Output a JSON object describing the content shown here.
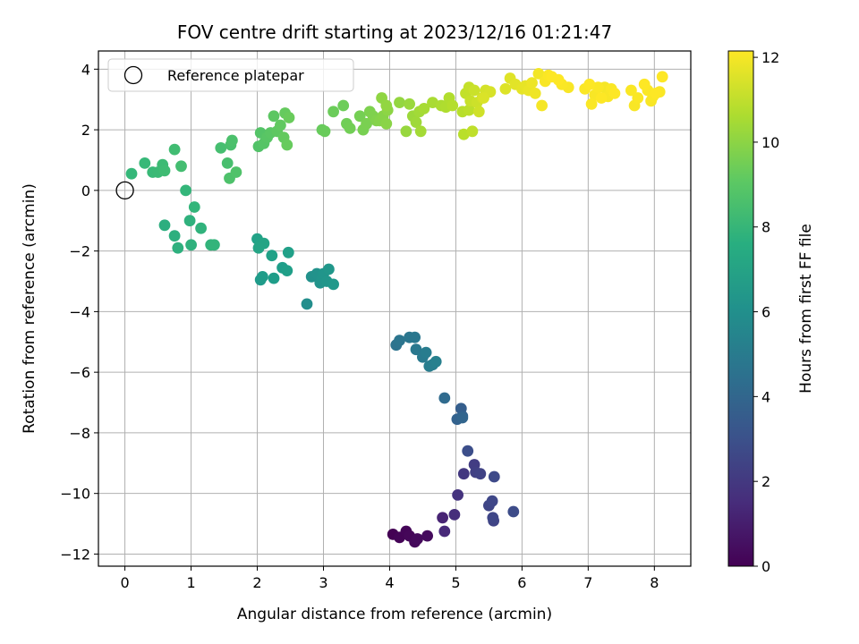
{
  "chart_data": {
    "type": "scatter",
    "title": "FOV centre drift starting at 2023/12/16 01:21:47",
    "xlabel": "Angular distance from reference (arcmin)",
    "ylabel": "Rotation from reference (arcmin)",
    "xlim": [
      -0.4,
      8.55
    ],
    "ylim": [
      -12.4,
      4.6
    ],
    "xticks": [
      0,
      1,
      2,
      3,
      4,
      5,
      6,
      7,
      8
    ],
    "yticks": [
      -12,
      -10,
      -8,
      -6,
      -4,
      -2,
      0,
      2,
      4
    ],
    "grid": true,
    "legend": {
      "position": "top-left",
      "entries": [
        "Reference platepar"
      ]
    },
    "reference_point": {
      "x": 0,
      "y": 0,
      "label": "Reference platepar"
    },
    "colorbar": {
      "label": "Hours from first FF file",
      "range": [
        0,
        12.15
      ],
      "ticks": [
        0,
        2,
        4,
        6,
        8,
        10,
        12
      ],
      "colormap": "viridis"
    },
    "points": [
      [
        4.05,
        -11.35,
        0.0
      ],
      [
        4.15,
        -11.45,
        0.1
      ],
      [
        4.25,
        -11.25,
        0.15
      ],
      [
        4.3,
        -11.4,
        0.2
      ],
      [
        4.38,
        -11.6,
        0.25
      ],
      [
        4.42,
        -11.5,
        0.3
      ],
      [
        4.57,
        -11.4,
        0.35
      ],
      [
        4.8,
        -10.8,
        1.2
      ],
      [
        4.83,
        -11.25,
        1.4
      ],
      [
        4.98,
        -10.7,
        1.6
      ],
      [
        5.03,
        -10.05,
        1.8
      ],
      [
        5.12,
        -9.35,
        2.0
      ],
      [
        5.28,
        -9.05,
        2.2
      ],
      [
        5.3,
        -9.3,
        2.3
      ],
      [
        5.37,
        -9.35,
        2.4
      ],
      [
        5.5,
        -10.4,
        2.5
      ],
      [
        5.55,
        -10.25,
        2.6
      ],
      [
        5.56,
        -10.8,
        2.55
      ],
      [
        5.57,
        -10.9,
        2.45
      ],
      [
        5.58,
        -9.45,
        2.7
      ],
      [
        5.87,
        -10.6,
        2.8
      ],
      [
        5.18,
        -8.6,
        2.9
      ],
      [
        5.08,
        -7.2,
        3.6
      ],
      [
        5.1,
        -7.45,
        3.7
      ],
      [
        5.02,
        -7.55,
        3.8
      ],
      [
        5.1,
        -7.5,
        3.9
      ],
      [
        4.83,
        -6.85,
        4.2
      ],
      [
        4.1,
        -5.1,
        4.6
      ],
      [
        4.15,
        -4.95,
        4.7
      ],
      [
        4.3,
        -4.85,
        4.8
      ],
      [
        4.38,
        -4.85,
        4.85
      ],
      [
        4.4,
        -5.25,
        4.9
      ],
      [
        4.5,
        -5.5,
        5.0
      ],
      [
        4.55,
        -5.35,
        5.1
      ],
      [
        4.6,
        -5.8,
        5.15
      ],
      [
        4.65,
        -5.75,
        5.2
      ],
      [
        4.7,
        -5.65,
        5.3
      ],
      [
        2.75,
        -3.75,
        6.0
      ],
      [
        2.82,
        -2.85,
        6.1
      ],
      [
        2.9,
        -2.75,
        6.15
      ],
      [
        2.95,
        -3.05,
        6.2
      ],
      [
        2.98,
        -2.9,
        6.25
      ],
      [
        3.0,
        -2.75,
        6.3
      ],
      [
        3.05,
        -3.0,
        6.35
      ],
      [
        3.08,
        -2.6,
        6.4
      ],
      [
        3.15,
        -3.1,
        6.45
      ],
      [
        2.05,
        -2.95,
        6.6
      ],
      [
        2.08,
        -2.85,
        6.65
      ],
      [
        2.25,
        -2.9,
        6.7
      ],
      [
        2.38,
        -2.55,
        6.75
      ],
      [
        2.45,
        -2.65,
        6.8
      ],
      [
        2.47,
        -2.05,
        6.85
      ],
      [
        2.22,
        -2.15,
        6.9
      ],
      [
        2.0,
        -1.6,
        6.95
      ],
      [
        2.05,
        -1.75,
        7.0
      ],
      [
        2.1,
        -1.75,
        7.05
      ],
      [
        2.02,
        -1.9,
        7.1
      ],
      [
        0.6,
        -1.15,
        7.6
      ],
      [
        0.75,
        -1.5,
        7.65
      ],
      [
        0.8,
        -1.9,
        7.7
      ],
      [
        1.0,
        -1.8,
        7.75
      ],
      [
        0.98,
        -1.0,
        7.8
      ],
      [
        1.15,
        -1.25,
        7.85
      ],
      [
        1.3,
        -1.8,
        7.9
      ],
      [
        1.35,
        -1.8,
        7.95
      ],
      [
        1.05,
        -0.55,
        8.0
      ],
      [
        0.92,
        0.0,
        8.05
      ],
      [
        0.1,
        0.55,
        8.1
      ],
      [
        0.3,
        0.9,
        8.15
      ],
      [
        0.42,
        0.6,
        8.2
      ],
      [
        0.5,
        0.6,
        8.25
      ],
      [
        0.57,
        0.85,
        8.3
      ],
      [
        0.6,
        0.65,
        8.35
      ],
      [
        0.75,
        1.35,
        8.4
      ],
      [
        0.85,
        0.8,
        8.45
      ],
      [
        1.45,
        1.4,
        8.5
      ],
      [
        1.55,
        0.9,
        8.55
      ],
      [
        1.6,
        1.5,
        8.6
      ],
      [
        1.62,
        1.65,
        8.65
      ],
      [
        1.58,
        0.4,
        8.7
      ],
      [
        1.68,
        0.6,
        8.75
      ],
      [
        2.02,
        1.45,
        8.8
      ],
      [
        2.05,
        1.9,
        8.85
      ],
      [
        2.1,
        1.55,
        8.9
      ],
      [
        2.15,
        1.75,
        8.95
      ],
      [
        2.2,
        1.9,
        9.0
      ],
      [
        2.25,
        2.45,
        9.05
      ],
      [
        2.3,
        1.95,
        9.1
      ],
      [
        2.35,
        2.15,
        9.15
      ],
      [
        2.4,
        1.75,
        9.2
      ],
      [
        2.42,
        2.55,
        9.25
      ],
      [
        2.45,
        1.5,
        9.3
      ],
      [
        2.48,
        2.4,
        9.35
      ],
      [
        2.98,
        2.0,
        9.3
      ],
      [
        3.02,
        1.95,
        9.35
      ],
      [
        3.15,
        2.6,
        9.4
      ],
      [
        3.3,
        2.8,
        9.45
      ],
      [
        3.35,
        2.2,
        9.5
      ],
      [
        3.4,
        2.05,
        9.55
      ],
      [
        3.55,
        2.45,
        9.6
      ],
      [
        3.6,
        2.0,
        9.65
      ],
      [
        3.65,
        2.2,
        9.7
      ],
      [
        3.7,
        2.6,
        9.75
      ],
      [
        3.75,
        2.45,
        9.8
      ],
      [
        3.8,
        2.3,
        9.85
      ],
      [
        3.85,
        2.3,
        9.9
      ],
      [
        3.9,
        2.45,
        9.95
      ],
      [
        3.95,
        2.2,
        10.0
      ],
      [
        3.97,
        2.65,
        10.05
      ],
      [
        3.88,
        3.05,
        10.1
      ],
      [
        3.95,
        2.8,
        10.15
      ],
      [
        4.15,
        2.9,
        10.2
      ],
      [
        4.25,
        1.95,
        10.25
      ],
      [
        4.3,
        2.85,
        10.3
      ],
      [
        4.35,
        2.45,
        10.35
      ],
      [
        4.4,
        2.25,
        10.4
      ],
      [
        4.45,
        2.6,
        10.45
      ],
      [
        4.47,
        1.95,
        10.5
      ],
      [
        4.52,
        2.7,
        10.55
      ],
      [
        4.65,
        2.9,
        10.6
      ],
      [
        4.78,
        2.8,
        10.65
      ],
      [
        4.85,
        2.75,
        10.7
      ],
      [
        4.9,
        3.05,
        10.75
      ],
      [
        4.95,
        2.8,
        10.8
      ],
      [
        5.1,
        2.6,
        10.85
      ],
      [
        5.12,
        1.85,
        10.9
      ],
      [
        5.2,
        2.65,
        10.95
      ],
      [
        5.25,
        1.95,
        11.0
      ],
      [
        5.15,
        3.2,
        11.05
      ],
      [
        5.2,
        3.4,
        11.1
      ],
      [
        5.22,
        2.95,
        11.15
      ],
      [
        5.28,
        3.3,
        11.2
      ],
      [
        5.32,
        2.9,
        11.25
      ],
      [
        5.35,
        2.6,
        11.3
      ],
      [
        5.4,
        3.05,
        11.35
      ],
      [
        5.45,
        3.3,
        11.4
      ],
      [
        5.52,
        3.25,
        11.45
      ],
      [
        5.42,
        3.05,
        11.5
      ],
      [
        5.75,
        3.35,
        11.55
      ],
      [
        5.82,
        3.7,
        11.6
      ],
      [
        5.9,
        3.5,
        11.65
      ],
      [
        6.0,
        3.35,
        11.7
      ],
      [
        6.05,
        3.45,
        11.75
      ],
      [
        6.1,
        3.3,
        11.8
      ],
      [
        6.15,
        3.55,
        11.85
      ],
      [
        6.2,
        3.2,
        11.9
      ],
      [
        6.25,
        3.85,
        11.95
      ],
      [
        6.3,
        2.8,
        12.0
      ],
      [
        6.35,
        3.6,
        12.05
      ],
      [
        6.4,
        3.8,
        12.1
      ],
      [
        6.45,
        3.75,
        12.15
      ],
      [
        6.55,
        3.65,
        12.15
      ],
      [
        6.6,
        3.5,
        12.1
      ],
      [
        6.7,
        3.4,
        12.05
      ],
      [
        6.95,
        3.35,
        12.1
      ],
      [
        7.02,
        3.5,
        12.15
      ],
      [
        7.05,
        2.85,
        12.1
      ],
      [
        7.1,
        3.15,
        12.05
      ],
      [
        7.15,
        3.4,
        12.1
      ],
      [
        7.2,
        3.05,
        12.15
      ],
      [
        7.25,
        3.4,
        12.0
      ],
      [
        7.3,
        3.1,
        12.05
      ],
      [
        7.35,
        3.35,
        12.1
      ],
      [
        7.4,
        3.2,
        12.15
      ],
      [
        7.65,
        3.3,
        12.1
      ],
      [
        7.7,
        2.8,
        12.05
      ],
      [
        7.75,
        3.05,
        12.1
      ],
      [
        7.85,
        3.5,
        12.15
      ],
      [
        7.9,
        3.3,
        12.1
      ],
      [
        7.95,
        2.95,
        12.05
      ],
      [
        7.98,
        3.1,
        12.1
      ],
      [
        8.02,
        3.2,
        12.15
      ],
      [
        8.08,
        3.25,
        12.1
      ],
      [
        8.12,
        3.75,
        12.15
      ]
    ]
  }
}
